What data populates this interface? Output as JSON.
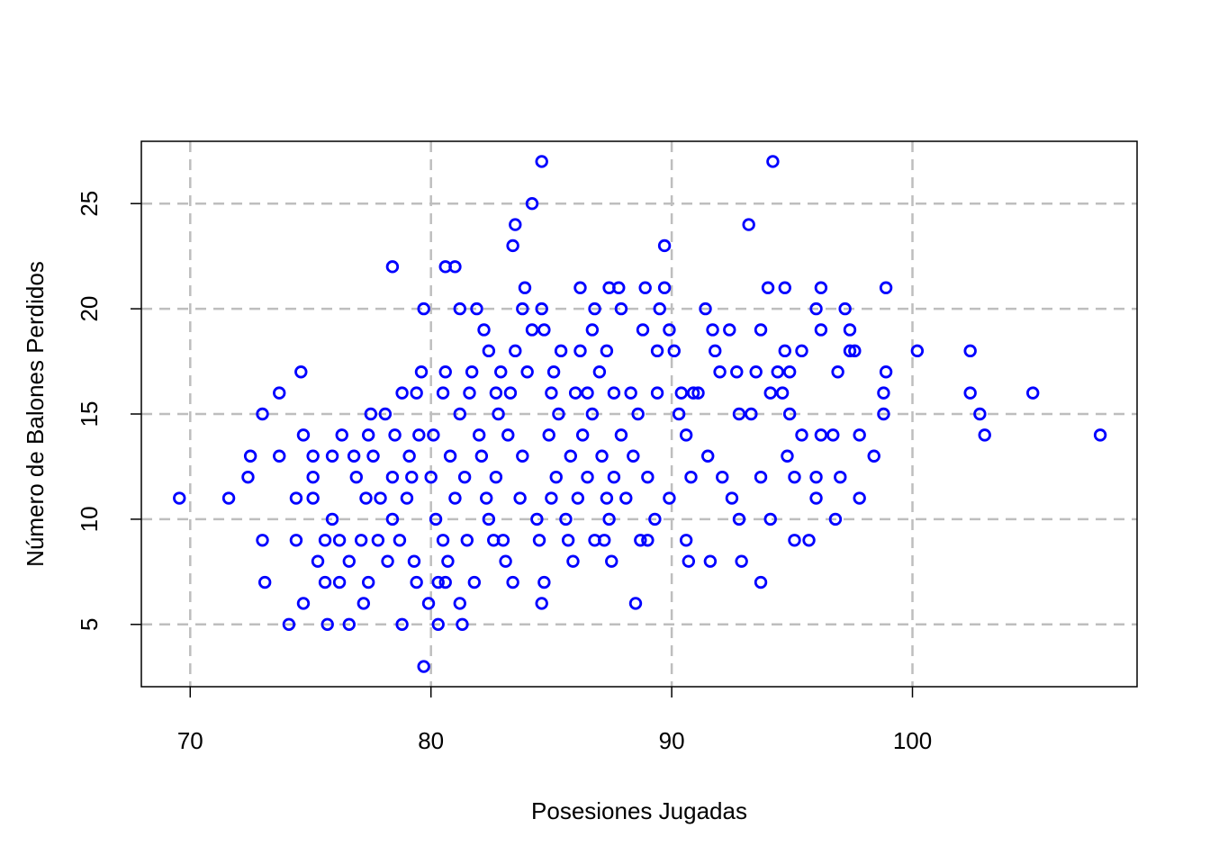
{
  "chart_data": {
    "type": "scatter",
    "x_label": "Posesiones Jugadas",
    "y_label": "Número de Balones Perdidos",
    "color": "#0000ff",
    "grid": true,
    "xlim": [
      67.97,
      109.33
    ],
    "ylim": [
      2.04,
      27.96
    ],
    "xticks": [
      70,
      80,
      90,
      100
    ],
    "yticks": [
      5,
      10,
      15,
      20,
      25
    ],
    "x": [
      69.55,
      71.6,
      72.4,
      72.5,
      73.0,
      73.0,
      73.1,
      73.7,
      73.7,
      74.1,
      74.4,
      74.6,
      74.4,
      74.7,
      74.7,
      75.1,
      75.1,
      75.1,
      75.3,
      75.6,
      75.6,
      75.7,
      75.9,
      75.9,
      76.2,
      76.2,
      76.3,
      76.6,
      76.6,
      76.8,
      76.9,
      77.1,
      77.2,
      77.3,
      77.4,
      77.4,
      77.5,
      77.6,
      77.8,
      77.9,
      78.1,
      78.2,
      78.4,
      78.4,
      78.4,
      78.5,
      78.7,
      78.8,
      78.8,
      79.0,
      79.1,
      79.2,
      79.3,
      79.4,
      79.4,
      79.5,
      79.6,
      79.7,
      79.7,
      79.9,
      80.0,
      80.1,
      80.2,
      80.3,
      80.3,
      80.5,
      80.5,
      80.6,
      80.6,
      80.6,
      80.7,
      80.8,
      81.0,
      81.0,
      81.2,
      81.2,
      81.2,
      81.3,
      81.4,
      81.5,
      81.6,
      81.7,
      81.8,
      81.9,
      82.0,
      82.1,
      82.2,
      82.3,
      82.4,
      82.4,
      82.6,
      82.7,
      82.7,
      82.8,
      82.9,
      83.0,
      83.1,
      83.2,
      83.3,
      83.4,
      83.4,
      83.5,
      83.5,
      83.7,
      83.8,
      83.8,
      83.9,
      84.0,
      84.2,
      84.2,
      84.4,
      84.5,
      84.6,
      84.6,
      84.6,
      84.7,
      84.7,
      84.9,
      85.0,
      85.0,
      85.1,
      85.2,
      85.3,
      85.4,
      85.6,
      85.7,
      85.8,
      85.9,
      86.0,
      86.1,
      86.2,
      86.2,
      86.3,
      86.5,
      86.5,
      86.7,
      86.7,
      86.8,
      86.8,
      87.0,
      87.1,
      87.2,
      87.3,
      87.3,
      87.4,
      87.4,
      87.5,
      87.6,
      87.6,
      87.8,
      87.9,
      87.9,
      88.1,
      88.3,
      88.4,
      88.5,
      88.6,
      88.7,
      88.8,
      88.9,
      89.0,
      89.0,
      89.3,
      89.4,
      89.4,
      89.5,
      89.7,
      89.7,
      89.9,
      89.9,
      90.1,
      90.3,
      90.4,
      90.6,
      90.6,
      90.7,
      90.8,
      90.9,
      91.1,
      91.4,
      91.5,
      91.6,
      91.7,
      91.8,
      92.0,
      92.1,
      92.4,
      92.5,
      92.7,
      92.8,
      92.8,
      92.9,
      93.2,
      93.3,
      93.5,
      93.7,
      93.7,
      93.7,
      94.0,
      94.1,
      94.2,
      94.1,
      94.4,
      94.6,
      94.7,
      94.7,
      94.8,
      94.9,
      94.9,
      95.1,
      95.1,
      95.4,
      95.4,
      95.7,
      96.0,
      96.0,
      96.0,
      96.2,
      96.2,
      96.2,
      96.7,
      96.8,
      96.9,
      97.0,
      97.2,
      97.4,
      97.4,
      97.6,
      97.8,
      97.8,
      98.4,
      98.8,
      98.8,
      98.9,
      98.9,
      100.2,
      102.4,
      102.4,
      102.8,
      103.0,
      105.0,
      107.8
    ],
    "y": [
      11,
      11,
      12,
      13,
      15,
      9,
      7,
      16,
      13,
      5,
      9,
      17,
      11,
      14,
      6,
      13,
      12,
      11,
      8,
      9,
      7,
      5,
      10,
      13,
      9,
      7,
      14,
      5,
      8,
      13,
      12,
      9,
      6,
      11,
      7,
      14,
      15,
      13,
      9,
      11,
      15,
      8,
      22,
      12,
      10,
      14,
      9,
      16,
      5,
      11,
      13,
      12,
      8,
      16,
      7,
      14,
      17,
      20,
      3,
      6,
      12,
      14,
      10,
      7,
      5,
      16,
      9,
      17,
      22,
      7,
      8,
      13,
      22,
      11,
      20,
      6,
      15,
      5,
      12,
      9,
      16,
      17,
      7,
      20,
      14,
      13,
      19,
      11,
      18,
      10,
      9,
      16,
      12,
      15,
      17,
      9,
      8,
      14,
      16,
      23,
      7,
      24,
      18,
      11,
      20,
      13,
      21,
      17,
      25,
      19,
      10,
      9,
      27,
      20,
      6,
      7,
      19,
      14,
      16,
      11,
      17,
      12,
      15,
      18,
      10,
      9,
      13,
      8,
      16,
      11,
      21,
      18,
      14,
      12,
      16,
      15,
      19,
      20,
      9,
      17,
      13,
      9,
      11,
      18,
      21,
      10,
      8,
      16,
      12,
      21,
      20,
      14,
      11,
      16,
      13,
      6,
      15,
      9,
      19,
      21,
      12,
      9,
      10,
      18,
      16,
      20,
      23,
      21,
      11,
      19,
      18,
      15,
      16,
      9,
      14,
      8,
      12,
      16,
      16,
      20,
      13,
      8,
      19,
      18,
      17,
      12,
      19,
      11,
      17,
      10,
      15,
      8,
      24,
      15,
      17,
      12,
      19,
      7,
      21,
      10,
      27,
      16,
      17,
      16,
      21,
      18,
      13,
      17,
      15,
      12,
      9,
      14,
      18,
      9,
      12,
      20,
      11,
      21,
      19,
      14,
      14,
      10,
      17,
      12,
      20,
      19,
      18,
      18,
      14,
      11,
      13,
      16,
      15,
      17,
      21,
      18,
      18,
      16,
      15,
      14,
      16,
      14
    ]
  }
}
